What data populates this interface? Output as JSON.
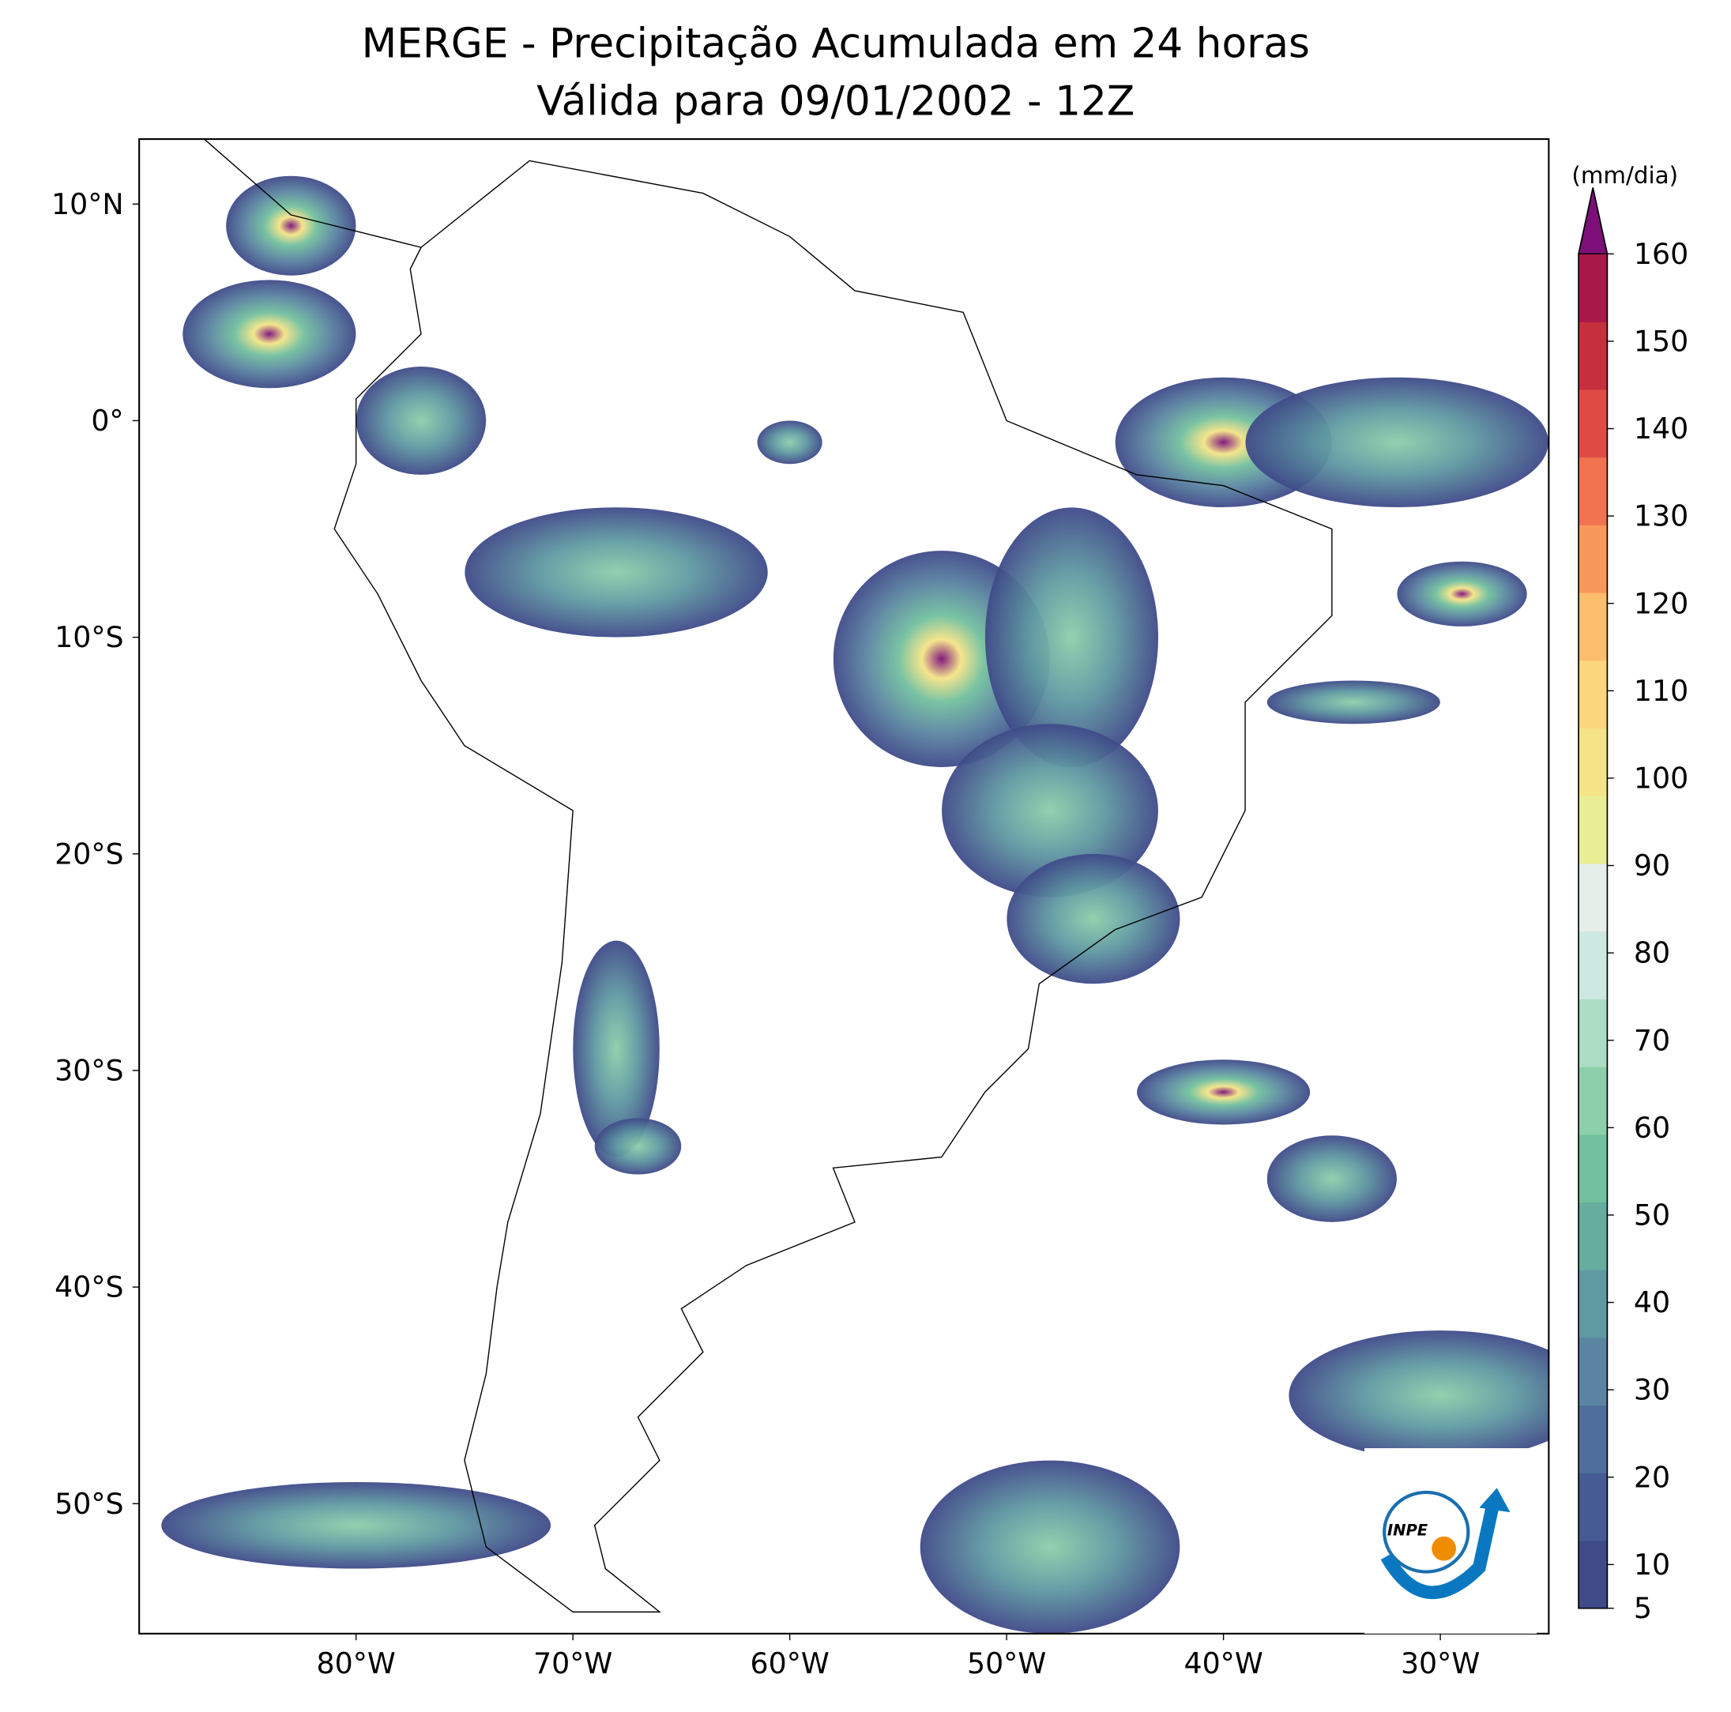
{
  "map": {
    "title": "MERGE - Precipitação Acumulada em 24 horas",
    "subtitle": "Válida para 09/01/2002 - 12Z",
    "xlim": [
      -90,
      -25
    ],
    "ylim": [
      -56,
      13
    ],
    "xticks": [
      {
        "value": -80,
        "label": "80°W"
      },
      {
        "value": -70,
        "label": "70°W"
      },
      {
        "value": -60,
        "label": "60°W"
      },
      {
        "value": -50,
        "label": "50°W"
      },
      {
        "value": -40,
        "label": "40°W"
      },
      {
        "value": -30,
        "label": "30°W"
      }
    ],
    "yticks": [
      {
        "value": 10,
        "label": "10°N"
      },
      {
        "value": 0,
        "label": "0°"
      },
      {
        "value": -10,
        "label": "10°S"
      },
      {
        "value": -20,
        "label": "20°S"
      },
      {
        "value": -30,
        "label": "30°S"
      },
      {
        "value": -40,
        "label": "40°S"
      },
      {
        "value": -50,
        "label": "50°S"
      }
    ],
    "colorbar": {
      "unit": "(mm/dia)",
      "lim": [
        5,
        160
      ],
      "ticks": [
        5,
        10,
        20,
        30,
        40,
        50,
        60,
        70,
        80,
        90,
        100,
        110,
        120,
        130,
        140,
        150,
        160
      ],
      "colors": [
        "#3f4a89",
        "#465a94",
        "#4f6e9c",
        "#5a84a1",
        "#5f99a2",
        "#66ad9f",
        "#72c09f",
        "#8ccfaa",
        "#acdcc4",
        "#cde8e0",
        "#e5eee9",
        "#e9ee95",
        "#f4e486",
        "#fbd67c",
        "#fcbd6c",
        "#f8985a",
        "#f17350",
        "#e04c45",
        "#c5303f",
        "#a8194a"
      ],
      "over_color": "#7d0f78"
    },
    "logo": "INPE"
  }
}
